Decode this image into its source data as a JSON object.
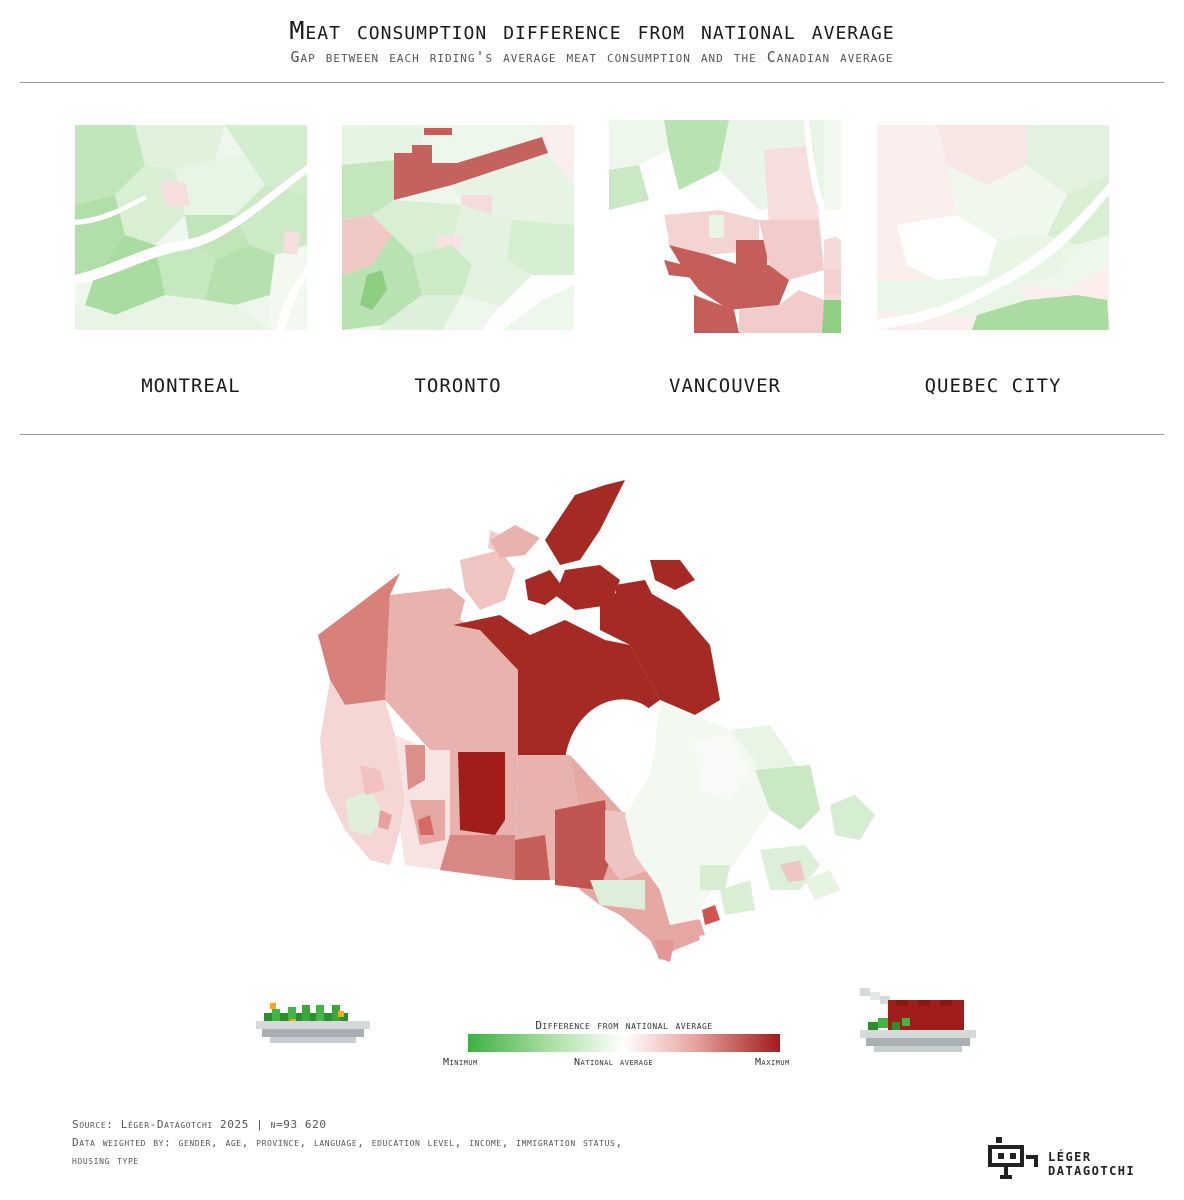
{
  "header": {
    "title": "Meat consumption difference from national average",
    "subtitle": "Gap between each riding's average meat consumption and the Canadian average"
  },
  "cities": [
    {
      "name": "MONTREAL"
    },
    {
      "name": "TORONTO"
    },
    {
      "name": "VANCOUVER"
    },
    {
      "name": "QUEBEC CITY"
    }
  ],
  "map": {
    "region": "Canada",
    "color_scale": {
      "min_color": "#3cb044",
      "mid_color": "#ffffff",
      "max_color": "#a11c1a"
    }
  },
  "legend": {
    "title": "Difference from national average",
    "min_label": "Minimum",
    "mid_label": "National average",
    "max_label": "Maximum",
    "left_icon": "salad-plate-icon",
    "right_icon": "steak-plate-icon"
  },
  "footer": {
    "source": "Source: Léger-Datagotchi 2025 | n=93 620",
    "weighting_line1": "Data weighted by: gender, age, province, language, education level, income, immigration status,",
    "weighting_line2": "housing type"
  },
  "brand": {
    "line1": "LÉGER",
    "line2": "DATAGOTCHI"
  }
}
